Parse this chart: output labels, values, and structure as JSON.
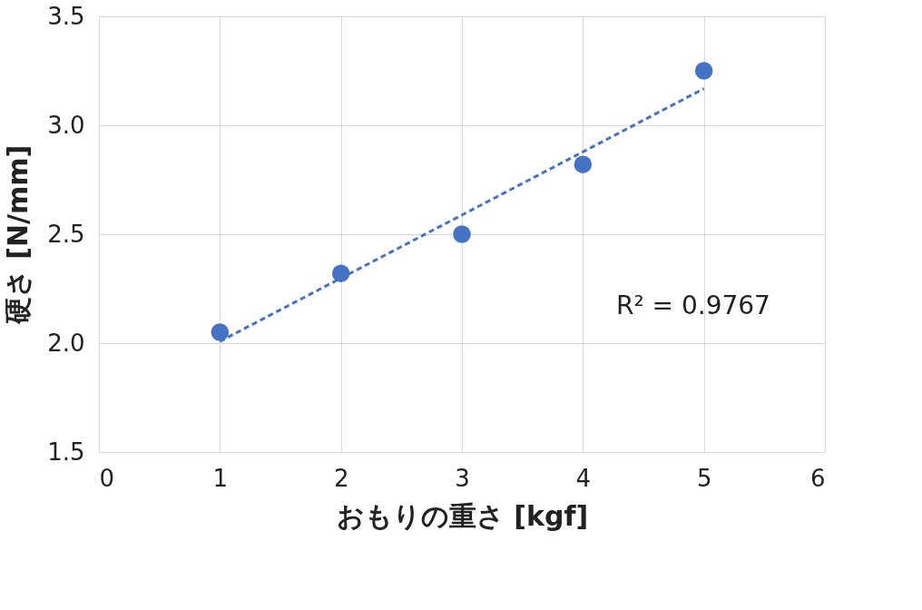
{
  "chart_data": {
    "type": "scatter",
    "xlabel": "おもりの重さ [kgf]",
    "ylabel": "硬さ [N/mm]",
    "x": [
      1,
      2,
      3,
      4,
      5
    ],
    "series": [
      {
        "color": "#4472c4",
        "values": [
          2.05,
          2.32,
          2.5,
          2.82,
          3.25
        ],
        "marker": "circle"
      },
      {
        "type": "line",
        "color": "#4472c4",
        "x": [
          1,
          5
        ],
        "values": [
          2.008,
          3.168
        ],
        "line_style": "dashed",
        "marker": "none"
      }
    ],
    "annotations": [
      "R² = 0.9767"
    ],
    "xlim": [
      0,
      6
    ],
    "xticks": [
      0,
      1,
      2,
      3,
      4,
      5,
      6
    ],
    "ylim": [
      1.5,
      3.5
    ],
    "yticks": [
      1.5,
      {
        "value": 2,
        "label": "2.0"
      },
      2.5,
      {
        "value": 3,
        "label": "3.0"
      },
      3.5
    ],
    "grid": true
  }
}
